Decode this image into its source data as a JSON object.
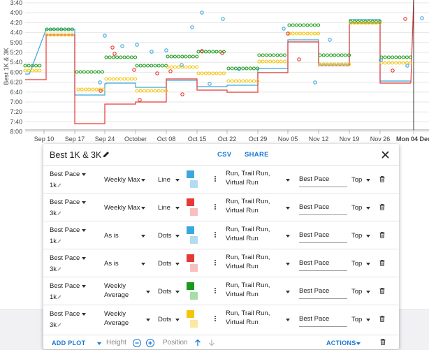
{
  "chart": {
    "y_axis_label": "Best 1K & 3K",
    "y_ticks": [
      "3:40",
      "4:00",
      "4:20",
      "4:40",
      "5:00",
      "5:20",
      "5:40",
      "6:00",
      "6:20",
      "6:40",
      "7:00",
      "7:20",
      "7:40",
      "8:00"
    ],
    "x_ticks": [
      "Sep 10",
      "Sep 17",
      "Sep 24",
      "October",
      "Oct 08",
      "Oct 15",
      "Oct 22",
      "Oct 29",
      "Nov 05",
      "Nov 12",
      "Nov 19",
      "Nov 26",
      "Mon 04 Dec"
    ],
    "colors": {
      "blue": "#39a8e0",
      "red": "#e53935",
      "green": "#1a9a1a",
      "yellow": "#f4c50c"
    }
  },
  "dialog": {
    "title": "Best 1K & 3K",
    "csv_label": "CSV",
    "share_label": "SHARE",
    "rows": [
      {
        "metric": "Best Pace",
        "distance": "1k",
        "aggregation": [
          "Weekly Max"
        ],
        "style": "Line",
        "color": "#39a8e0",
        "light": "#b3dcf3",
        "activities": [
          "Run, Trail Run,",
          "Virtual Run"
        ],
        "label": "Best Pace",
        "position": "Top"
      },
      {
        "metric": "Best Pace",
        "distance": "3k",
        "aggregation": [
          "Weekly Max"
        ],
        "style": "Line",
        "color": "#e53935",
        "light": "#f7c0bf",
        "activities": [
          "Run, Trail Run,",
          "Virtual Run"
        ],
        "label": "Best Pace",
        "position": "Top"
      },
      {
        "metric": "Best Pace",
        "distance": "1k",
        "aggregation": [
          "As is"
        ],
        "style": "Dots",
        "color": "#39a8e0",
        "light": "#b3dcf3",
        "activities": [
          "Run, Trail Run,",
          "Virtual Run"
        ],
        "label": "Best Pace",
        "position": "Top"
      },
      {
        "metric": "Best Pace",
        "distance": "3k",
        "aggregation": [
          "As is"
        ],
        "style": "Dots",
        "color": "#e53935",
        "light": "#f7c0bf",
        "activities": [
          "Run, Trail Run,",
          "Virtual Run"
        ],
        "label": "Best Pace",
        "position": "Top"
      },
      {
        "metric": "Best Pace",
        "distance": "1k",
        "aggregation": [
          "Weekly",
          "Average"
        ],
        "style": "Dots",
        "color": "#1a9a1a",
        "light": "#a8dca8",
        "activities": [
          "Run, Trail Run,",
          "Virtual Run"
        ],
        "label": "Best Pace",
        "position": "Top"
      },
      {
        "metric": "Best Pace",
        "distance": "3k",
        "aggregation": [
          "Weekly",
          "Average"
        ],
        "style": "Dots",
        "color": "#f4c50c",
        "light": "#fbe8a4",
        "activities": [
          "Run, Trail Run,",
          "Virtual Run"
        ],
        "label": "Best Pace",
        "position": "Top"
      }
    ],
    "footer": {
      "add_plot": "ADD PLOT",
      "height_label": "Height",
      "position_label": "Position",
      "actions_label": "ACTIONS"
    }
  }
}
